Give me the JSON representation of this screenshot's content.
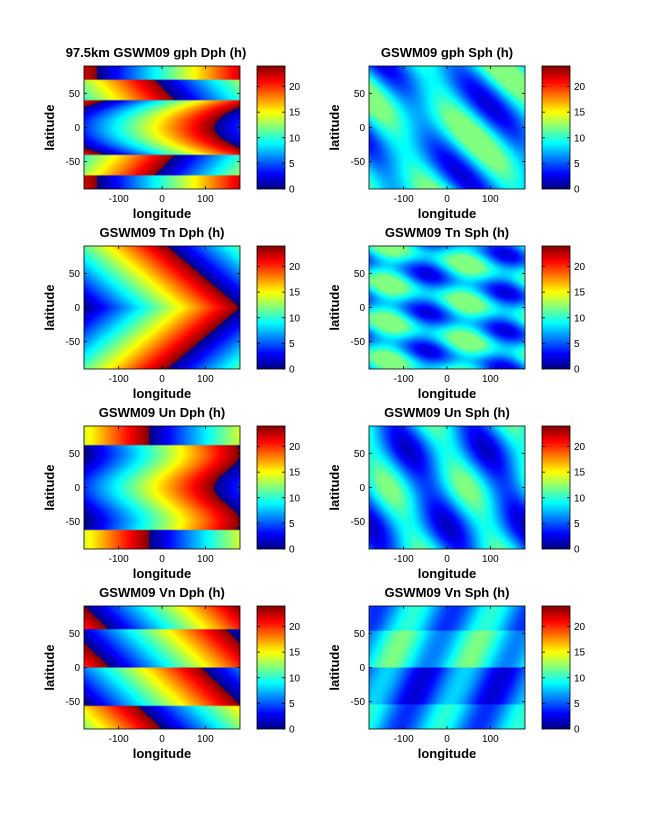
{
  "figure": {
    "colormap": "jet",
    "colormap_stops": [
      "#00008f",
      "#0000ff",
      "#0080ff",
      "#00ffff",
      "#80ff80",
      "#ffff00",
      "#ff8000",
      "#ff0000",
      "#800000"
    ]
  },
  "chart_data": [
    {
      "type": "heatmap",
      "title": "97.5km GSWM09 gph Dph (h)",
      "xlabel": "longitude",
      "ylabel": "latitude",
      "xlim": [
        -180,
        180
      ],
      "ylim": [
        -90,
        90
      ],
      "xticks": [
        "-100",
        "0",
        "100"
      ],
      "yticks": [
        "50",
        "0",
        "-50"
      ],
      "clim": [
        0,
        24
      ],
      "cbar_ticks": [
        "20",
        "15",
        "10",
        "5",
        "0"
      ],
      "colorbar": true,
      "field": {
        "kind": "diurnal_phase",
        "pattern": "phase increases eastward; discontinuities (0/24 wrap) near +40 and -40 latitude and a V-shaped phase front in the tropics"
      }
    },
    {
      "type": "heatmap",
      "title": "GSWM09 gph Sph (h)",
      "xlabel": "longitude",
      "ylabel": "latitude",
      "xlim": [
        -180,
        180
      ],
      "ylim": [
        -90,
        90
      ],
      "xticks": [
        "-100",
        "0",
        "100"
      ],
      "yticks": [
        "50",
        "0",
        "-50"
      ],
      "clim": [
        0,
        24
      ],
      "cbar_ticks": [
        "20",
        "15",
        "10",
        "5",
        "0"
      ],
      "colorbar": true,
      "field": {
        "kind": "semidiurnal_phase",
        "pattern": "values mostly 0-12 h (blue to cyan), bands repeating twice in longitude"
      }
    },
    {
      "type": "heatmap",
      "title": "GSWM09 Tn Dph (h)",
      "xlabel": "longitude",
      "ylabel": "latitude",
      "xlim": [
        -180,
        180
      ],
      "ylim": [
        -90,
        90
      ],
      "xticks": [
        "-100",
        "0",
        "100"
      ],
      "yticks": [
        "50",
        "0",
        "-50"
      ],
      "clim": [
        0,
        24
      ],
      "cbar_ticks": [
        "20",
        "15",
        "10",
        "5",
        "0"
      ],
      "colorbar": true,
      "field": {
        "kind": "diurnal_phase",
        "pattern": "V-shaped phase fronts symmetric about the equator"
      }
    },
    {
      "type": "heatmap",
      "title": "GSWM09 Tn Sph (h)",
      "xlabel": "longitude",
      "ylabel": "latitude",
      "xlim": [
        -180,
        180
      ],
      "ylim": [
        -90,
        90
      ],
      "xticks": [
        "-100",
        "0",
        "100"
      ],
      "yticks": [
        "50",
        "0",
        "-50"
      ],
      "clim": [
        0,
        24
      ],
      "cbar_ticks": [
        "20",
        "15",
        "10",
        "5",
        "0"
      ],
      "colorbar": true,
      "field": {
        "kind": "semidiurnal_phase",
        "pattern": "patchy blue/cyan blobs repeating twice in longitude"
      }
    },
    {
      "type": "heatmap",
      "title": "GSWM09 Un Dph (h)",
      "xlabel": "longitude",
      "ylabel": "latitude",
      "xlim": [
        -180,
        180
      ],
      "ylim": [
        -90,
        90
      ],
      "xticks": [
        "-100",
        "0",
        "100"
      ],
      "yticks": [
        "50",
        "0",
        "-50"
      ],
      "clim": [
        0,
        24
      ],
      "cbar_ticks": [
        "20",
        "15",
        "10",
        "5",
        "0"
      ],
      "colorbar": true,
      "field": {
        "kind": "diurnal_phase",
        "pattern": "phase increases eastward across the band -60 to 60 latitude"
      }
    },
    {
      "type": "heatmap",
      "title": "GSWM09 Un Sph (h)",
      "xlabel": "longitude",
      "ylabel": "latitude",
      "xlim": [
        -180,
        180
      ],
      "ylim": [
        -90,
        90
      ],
      "xticks": [
        "-100",
        "0",
        "100"
      ],
      "yticks": [
        "50",
        "0",
        "-50"
      ],
      "clim": [
        0,
        24
      ],
      "cbar_ticks": [
        "20",
        "15",
        "10",
        "5",
        "0"
      ],
      "colorbar": true,
      "field": {
        "kind": "semidiurnal_phase",
        "pattern": "blue/cyan vertical bands repeating twice in longitude"
      }
    },
    {
      "type": "heatmap",
      "title": "GSWM09 Vn Dph (h)",
      "xlabel": "longitude",
      "ylabel": "latitude",
      "xlim": [
        -180,
        180
      ],
      "ylim": [
        -90,
        90
      ],
      "xticks": [
        "-100",
        "0",
        "100"
      ],
      "yticks": [
        "50",
        "0",
        "-50"
      ],
      "clim": [
        0,
        24
      ],
      "cbar_ticks": [
        "20",
        "15",
        "10",
        "5",
        "0"
      ],
      "colorbar": true,
      "field": {
        "kind": "diurnal_phase",
        "pattern": "tilted phase bands with discontinuities near 55, 0 and -55 latitude"
      }
    },
    {
      "type": "heatmap",
      "title": "GSWM09 Vn Sph (h)",
      "xlabel": "longitude",
      "ylabel": "latitude",
      "xlim": [
        -180,
        180
      ],
      "ylim": [
        -90,
        90
      ],
      "xticks": [
        "-100",
        "0",
        "100"
      ],
      "yticks": [
        "50",
        "0",
        "-50"
      ],
      "clim": [
        0,
        24
      ],
      "cbar_ticks": [
        "20",
        "15",
        "10",
        "5",
        "0"
      ],
      "colorbar": true,
      "field": {
        "kind": "semidiurnal_phase",
        "pattern": "horizontal streaks of blue/cyan with breaks near 55, 0 and -55 latitude"
      }
    }
  ]
}
